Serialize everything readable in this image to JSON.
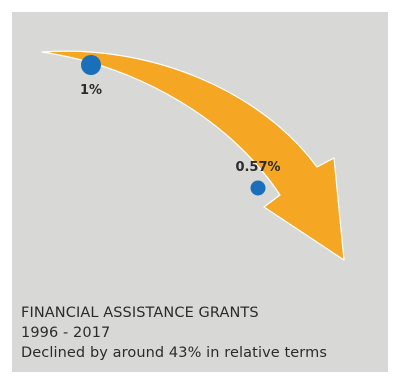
{
  "chart_data": {
    "type": "line",
    "title": "FINANCIAL ASSISTANCE GRANTS",
    "subtitle": "1996 - 2017",
    "annotation": "Declined by around 43% in relative terms",
    "x": [
      "1996",
      "2017"
    ],
    "values": [
      1,
      0.57
    ],
    "data_labels": [
      "1%",
      "0.57%"
    ],
    "ylim": [
      0.4,
      1.05
    ],
    "grid": false,
    "colors": {
      "arrow": "#f5a623",
      "point": "#1a6fba",
      "background": "#d8d8d7"
    }
  }
}
